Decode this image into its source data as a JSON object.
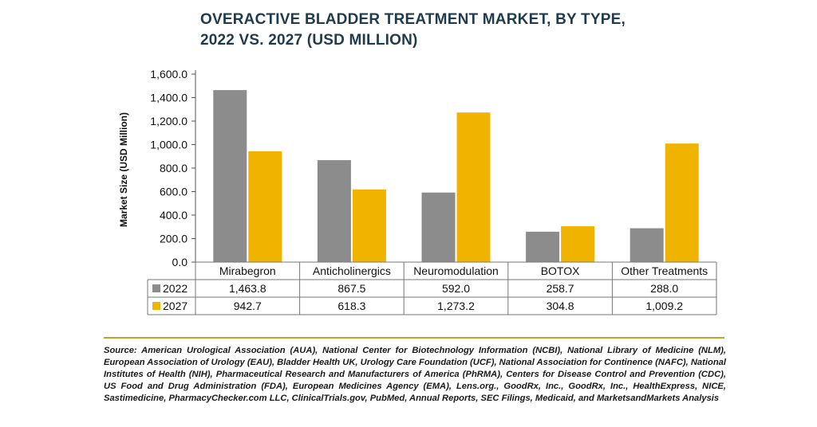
{
  "title_line1": "OVERACTIVE BLADDER TREATMENT MARKET, BY TYPE,",
  "title_line2": "2022 VS. 2027 (USD MILLION)",
  "source": "Source: American Urological Association (AUA), National Center for Biotechnology Information (NCBI), National Library of Medicine (NLM), European Association of Urology (EAU), Bladder Health UK, Urology Care Foundation (UCF), National Association for Continence (NAFC), National Institutes of Health (NIH), Pharmaceutical Research and Manufacturers of America (PhRMA), Centers for Disease Control and Prevention (CDC), US Food and Drug Administration (FDA), European Medicines Agency (EMA), Lens.org., GoodRx, Inc., GoodRx, Inc., HealthExpress, NICE, Sastimedicine, PharmacyChecker.com LLC, ClinicalTrials.gov, PubMed, Annual Reports, SEC Filings, Medicaid, and MarketsandMarkets Analysis",
  "colors": {
    "s2022": "#8c8c8c",
    "s2027": "#f0b400"
  },
  "chart_data": {
    "type": "bar",
    "title": "OVERACTIVE BLADDER TREATMENT MARKET, BY TYPE, 2022 VS. 2027 (USD MILLION)",
    "ylabel": "Market Size (USD Million)",
    "ylim": [
      0,
      1600
    ],
    "yticks": [
      "0.0",
      "200.0",
      "400.0",
      "600.0",
      "800.0",
      "1,000.0",
      "1,200.0",
      "1,400.0",
      "1,600.0"
    ],
    "ytick_values": [
      0,
      200,
      400,
      600,
      800,
      1000,
      1200,
      1400,
      1600
    ],
    "categories": [
      "Mirabegron",
      "Anticholinergics",
      "Neuromodulation",
      "BOTOX",
      "Other Treatments"
    ],
    "series": [
      {
        "name": "2022",
        "values": [
          1463.8,
          867.5,
          592.0,
          258.7,
          288.0
        ],
        "labels": [
          "1,463.8",
          "867.5",
          "592.0",
          "258.7",
          "288.0"
        ]
      },
      {
        "name": "2027",
        "values": [
          942.7,
          618.3,
          1273.2,
          304.8,
          1009.2
        ],
        "labels": [
          "942.7",
          "618.3",
          "1,273.2",
          "304.8",
          "1,009.2"
        ]
      }
    ],
    "grid": false,
    "legend": "data-table-left"
  }
}
